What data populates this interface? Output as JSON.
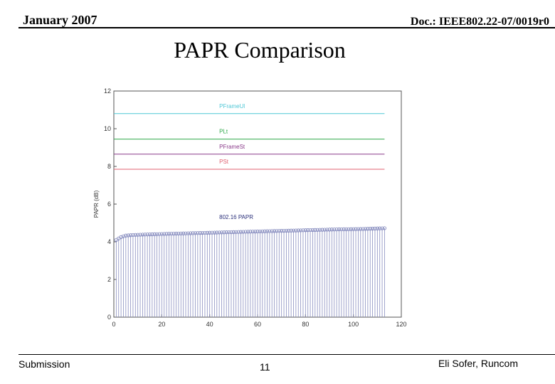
{
  "header": {
    "date": "January 2007",
    "doc": "Doc.: IEEE802.22-07/0019r0"
  },
  "slide": {
    "title": "PAPR Comparison"
  },
  "footer": {
    "left": "Submission",
    "page": "11",
    "right": "Eli Sofer, Runcom"
  },
  "chart_data": {
    "type": "line",
    "title": "",
    "xlabel": "",
    "ylabel": "PAPR (dB)",
    "xlim": [
      0,
      120
    ],
    "ylim": [
      0,
      12
    ],
    "xticks": [
      0,
      20,
      40,
      60,
      80,
      100,
      120
    ],
    "yticks": [
      0,
      2,
      4,
      6,
      8,
      10,
      12
    ],
    "grid": false,
    "reference_lines": [
      {
        "name": "PFrameUl",
        "y": 10.8,
        "color": "#4fc7d6"
      },
      {
        "name": "PLt",
        "y": 9.45,
        "color": "#2fa84a"
      },
      {
        "name": "PFrameSt",
        "y": 8.65,
        "color": "#8a3a8a"
      },
      {
        "name": "PSt",
        "y": 7.85,
        "color": "#e06070"
      }
    ],
    "series": [
      {
        "name": "802.16 PAPR",
        "style": "stem",
        "color": "#8a8fc0",
        "x_start": 1,
        "x_end": 113,
        "points": 113,
        "y_first": 4.1,
        "y_values": [
          4.1,
          4.25,
          4.33,
          4.36,
          4.38,
          4.4,
          4.42,
          4.44,
          4.46,
          4.48,
          4.5,
          4.52,
          4.54,
          4.56,
          4.58,
          4.6,
          4.62,
          4.64,
          4.66,
          4.68,
          4.72
        ],
        "y_x": [
          1,
          3,
          5,
          8,
          12,
          17,
          22,
          28,
          34,
          40,
          46,
          52,
          58,
          64,
          70,
          76,
          82,
          88,
          94,
          104,
          113
        ]
      }
    ]
  }
}
